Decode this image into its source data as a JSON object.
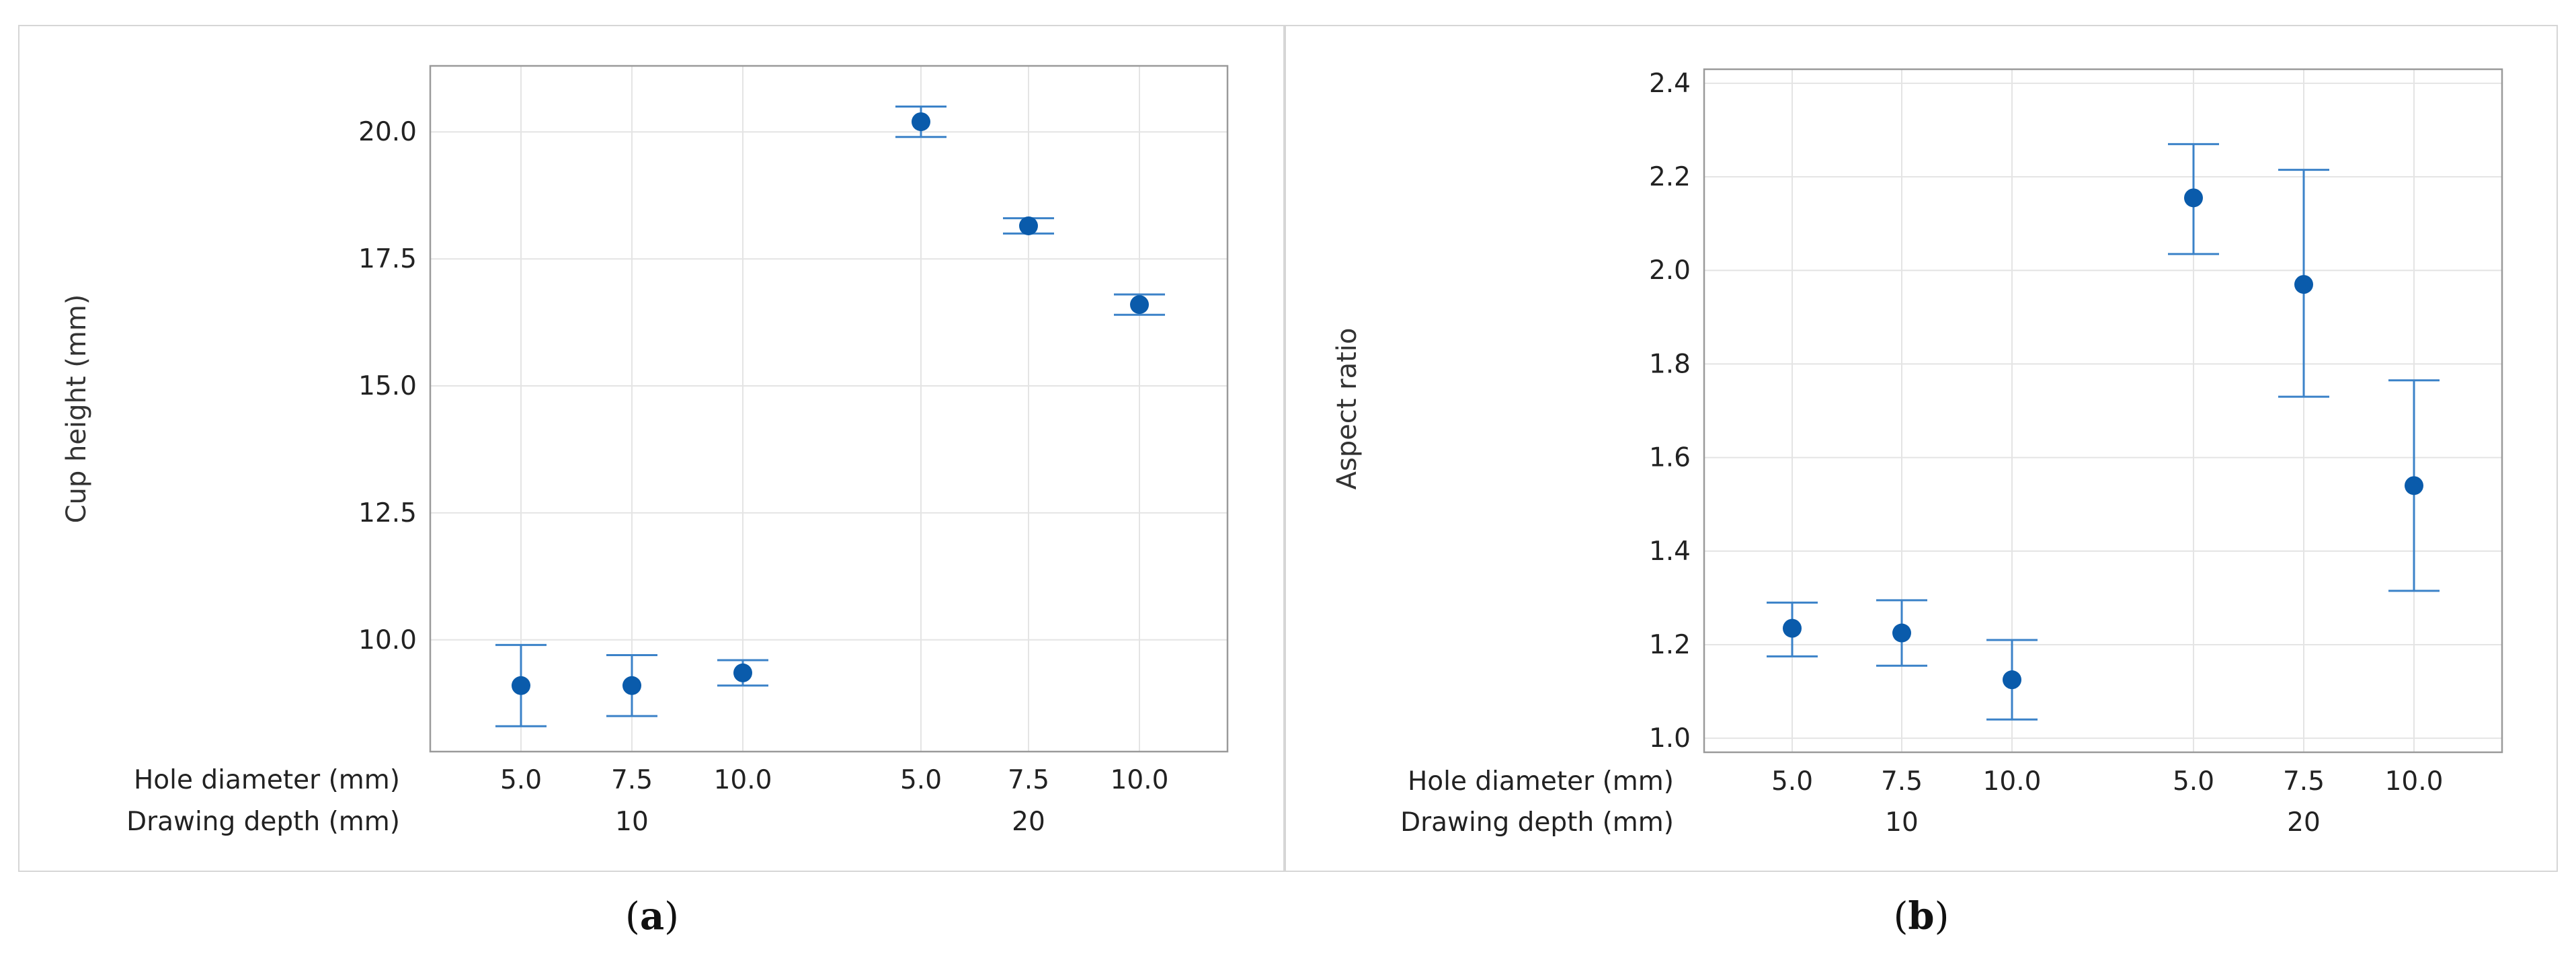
{
  "colors": {
    "marker": "#0a5bab",
    "errorbar": "#3b82c8",
    "grid": "#e4e4e4",
    "frame": "#9a9a9a",
    "panel_border": "#d6d6d6"
  },
  "row_headers": {
    "hole": "Hole diameter (mm)",
    "depth": "Drawing depth (mm)"
  },
  "panel_labels": [
    {
      "open": "(",
      "letter": "a",
      "close": ")"
    },
    {
      "open": "(",
      "letter": "b",
      "close": ")"
    }
  ],
  "chart_data": [
    {
      "type": "scatter",
      "title": "",
      "ylabel": "Cup height (mm)",
      "xlabel": "",
      "categories": [
        "5.0",
        "7.5",
        "10.0",
        "5.0",
        "7.5",
        "10.0"
      ],
      "group_labels": [
        "10",
        "20"
      ],
      "ylim": [
        7.8,
        21.3
      ],
      "yticks": [
        "10.0",
        "12.5",
        "15.0",
        "17.5",
        "20.0"
      ],
      "grid": true,
      "series": [
        {
          "values": [
            9.1,
            9.1,
            9.35,
            20.2,
            18.15,
            16.6
          ],
          "lower": [
            8.3,
            8.5,
            9.1,
            19.9,
            18.0,
            16.4
          ],
          "upper": [
            9.9,
            9.7,
            9.6,
            20.5,
            18.3,
            16.8
          ]
        }
      ]
    },
    {
      "type": "scatter",
      "title": "",
      "ylabel": "Aspect ratio",
      "xlabel": "",
      "categories": [
        "5.0",
        "7.5",
        "10.0",
        "5.0",
        "7.5",
        "10.0"
      ],
      "group_labels": [
        "10",
        "20"
      ],
      "ylim": [
        0.97,
        2.43
      ],
      "yticks": [
        "1.0",
        "1.2",
        "1.4",
        "1.6",
        "1.8",
        "2.0",
        "2.2",
        "2.4"
      ],
      "grid": true,
      "series": [
        {
          "values": [
            1.235,
            1.225,
            1.125,
            2.155,
            1.97,
            1.54
          ],
          "lower": [
            1.175,
            1.155,
            1.04,
            2.035,
            1.73,
            1.315
          ],
          "upper": [
            1.29,
            1.295,
            1.21,
            2.27,
            2.215,
            1.765
          ]
        }
      ]
    }
  ]
}
